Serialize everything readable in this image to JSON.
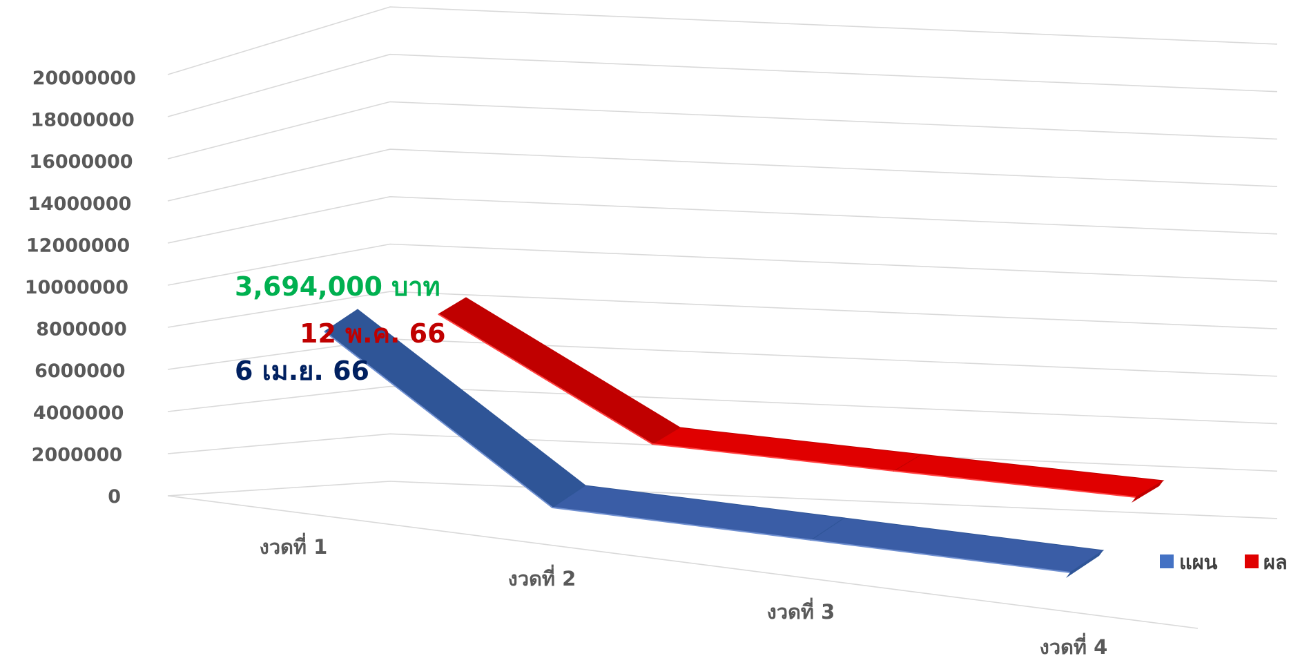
{
  "chart_data": {
    "type": "line",
    "title": "",
    "xlabel": "",
    "ylabel": "",
    "categories": [
      "งวดที่ 1",
      "งวดที่ 2",
      "งวดที่ 3",
      "งวดที่ 4"
    ],
    "yticks": [
      "0",
      "2000000",
      "4000000",
      "6000000",
      "8000000",
      "10000000",
      "12000000",
      "14000000",
      "16000000",
      "18000000",
      "20000000"
    ],
    "ylim": [
      0,
      20000000
    ],
    "grid": true,
    "legend_position": "bottom-right",
    "series": [
      {
        "name": "แผน",
        "color": "#4472C4",
        "values": [
          4000000,
          700000,
          700000,
          700000
        ]
      },
      {
        "name": "ผล",
        "color": "#E00000",
        "values": [
          6400000,
          2000000,
          2000000,
          2000000
        ]
      }
    ],
    "annotations": [
      {
        "text": "3,694,000 บาท",
        "color": "#00B050"
      },
      {
        "text": "12 พ.ค. 66",
        "color": "#C00000"
      },
      {
        "text": "6 เม.ย. 66",
        "color": "#002060"
      }
    ]
  }
}
